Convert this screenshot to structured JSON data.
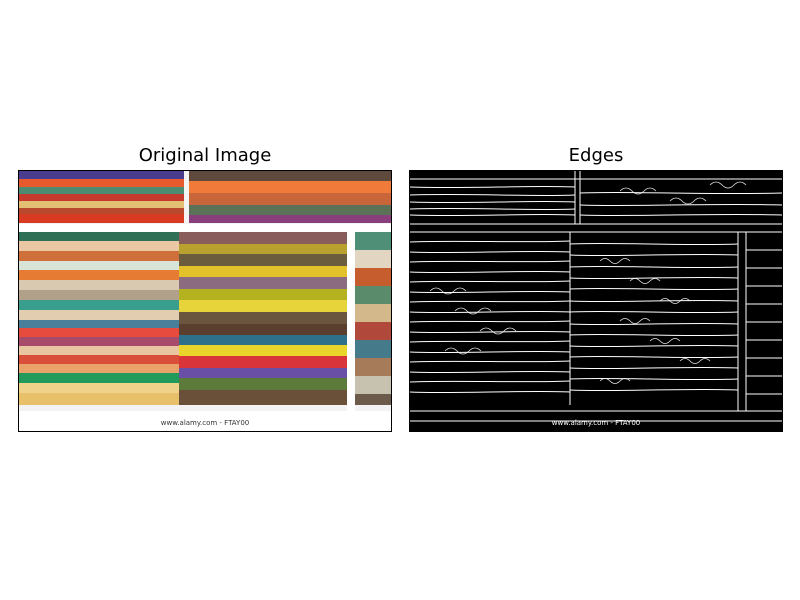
{
  "figure": {
    "left_panel": {
      "title": "Original Image",
      "watermark": "www.alamy.com - FTAY00"
    },
    "right_panel": {
      "title": "Edges",
      "watermark": "www.alamy.com - FTAY00"
    }
  },
  "colors": {
    "background": "#ffffff",
    "shelf": "#f2f2f2",
    "edge_bg": "#000000",
    "edge_line": "#ffffff"
  }
}
